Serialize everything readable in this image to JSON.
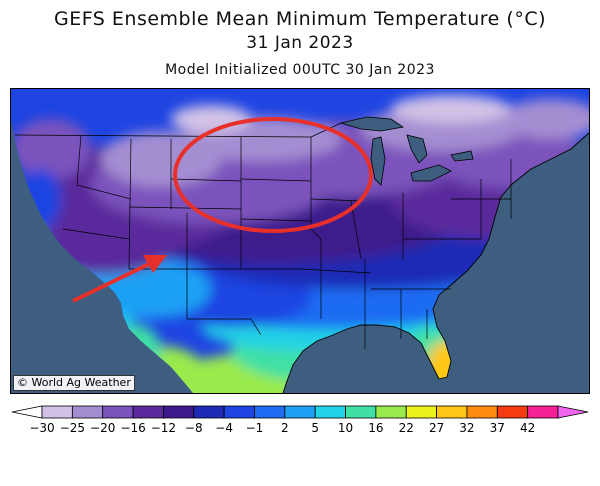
{
  "title": "GEFS Ensemble Mean Minimum Temperature (°C)",
  "valid_date": "31 Jan 2023",
  "initialized": "Model Initialized 00UTC 30 Jan 2023",
  "credit": "© World Ag Weather",
  "annotations": {
    "circle_color": "#e8302a",
    "arrow_color": "#e8302a"
  },
  "colorbar": {
    "ticks": [
      "−30",
      "−25",
      "−20",
      "−16",
      "−12",
      "−8",
      "−4",
      "−1",
      "2",
      "5",
      "10",
      "16",
      "22",
      "27",
      "32",
      "37",
      "42"
    ],
    "colors": [
      "#ffffff",
      "#d2c2e6",
      "#a48ed2",
      "#7c52bc",
      "#5a2a9c",
      "#3c1a8c",
      "#1e2ab6",
      "#1e44e2",
      "#1e6cf2",
      "#1ea0f4",
      "#22d2e6",
      "#40e0a4",
      "#9aea4c",
      "#ecf21c",
      "#ffc818",
      "#ff8c10",
      "#f43c10",
      "#f42094",
      "#f064f0"
    ]
  }
}
